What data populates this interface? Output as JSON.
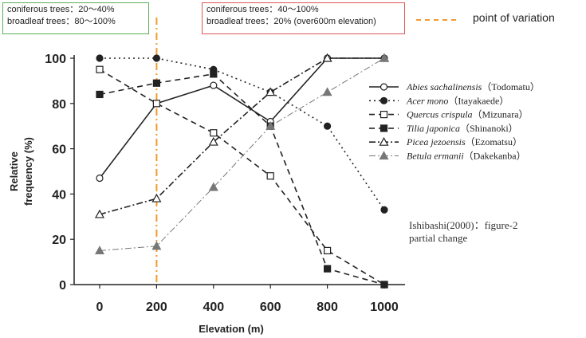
{
  "annotations": {
    "box_left": {
      "line1": "coniferous trees：20～40%",
      "line2": "broadleaf trees：80～100%"
    },
    "box_right": {
      "line1": "coniferous trees：40～100%",
      "line2": "broadleaf trees：20% (over600m elevation)"
    },
    "point_of_variation": {
      "label": "point of variation",
      "x": 200,
      "color": "#f39a2b"
    },
    "source": {
      "line1": "Ishibashi(2000)：figure-2",
      "line2": "partial change"
    }
  },
  "chart_data": {
    "type": "line",
    "title": "",
    "xlabel": "Elevation (m)",
    "ylabel_lines": [
      "Relative",
      "frequency (%)"
    ],
    "x": [
      0,
      200,
      400,
      600,
      800,
      1000
    ],
    "xlim": [
      0,
      1000
    ],
    "ylim": [
      0,
      100
    ],
    "xticks": [
      "0",
      "200",
      "400",
      "600",
      "800",
      "1000"
    ],
    "yticks": [
      "0",
      "20",
      "40",
      "60",
      "80",
      "100"
    ],
    "legend_position": "right",
    "grid": false,
    "series": [
      {
        "name": "Abies sachalinensis",
        "common": "（Todomatu）",
        "values": [
          47,
          80,
          88,
          72,
          100,
          100
        ],
        "marker": "open-circle",
        "dash": "solid",
        "width": 1.6,
        "color": "#222222"
      },
      {
        "name": "Acer mono",
        "common": "（Itayakaede）",
        "values": [
          100,
          100,
          95,
          85,
          70,
          33
        ],
        "marker": "filled-circle",
        "dash": "dotted",
        "width": 1.6,
        "color": "#222222"
      },
      {
        "name": "Quercus crispula",
        "common": "（Mizunara）",
        "values": [
          95,
          80,
          67,
          48,
          15,
          0
        ],
        "marker": "open-square",
        "dash": "dashed",
        "width": 1.6,
        "color": "#222222"
      },
      {
        "name": "Tilia japonica",
        "common": "（Shinanoki）",
        "values": [
          84,
          89,
          93,
          70,
          7,
          0
        ],
        "marker": "filled-square",
        "dash": "dashed",
        "width": 1.6,
        "color": "#222222"
      },
      {
        "name": "Picea jezoensis",
        "common": "（Ezomatsu）",
        "values": [
          31,
          38,
          63,
          85,
          100,
          100
        ],
        "marker": "open-triangle",
        "dash": "dashdot",
        "width": 1.6,
        "color": "#222222"
      },
      {
        "name": "Betula ermanii",
        "common": "（Dakekanba）",
        "values": [
          15,
          17,
          43,
          70,
          85,
          100
        ],
        "marker": "filled-triangle",
        "dash": "dashdot",
        "width": 1.0,
        "color": "#777777"
      }
    ]
  }
}
